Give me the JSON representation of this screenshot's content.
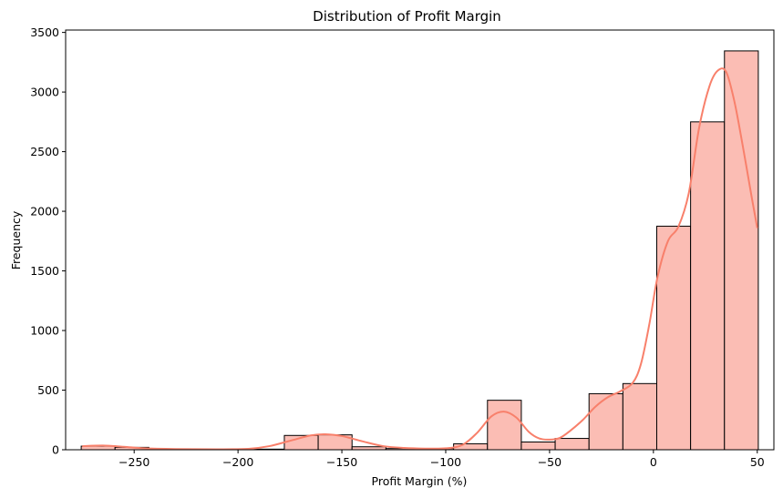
{
  "chart_data": {
    "type": "bar",
    "title": "Distribution of Profit Margin",
    "xlabel": "Profit Margin (%)",
    "ylabel": "Frequency",
    "xlim": [
      -283,
      58
    ],
    "ylim": [
      0,
      3520
    ],
    "xticks": [
      -250,
      -200,
      -150,
      -100,
      -50,
      0,
      50
    ],
    "xtick_labels": [
      "−250",
      "−200",
      "−150",
      "−100",
      "−50",
      "0",
      "50"
    ],
    "yticks": [
      0,
      500,
      1000,
      1500,
      2000,
      2500,
      3000,
      3500
    ],
    "ytick_labels": [
      "0",
      "500",
      "1000",
      "1500",
      "2000",
      "2500",
      "3000",
      "3500"
    ],
    "bins": [
      {
        "x0": -275.5,
        "x1": -259.2,
        "count": 30
      },
      {
        "x0": -259.2,
        "x1": -242.9,
        "count": 20
      },
      {
        "x0": -242.9,
        "x1": -226.6,
        "count": 5
      },
      {
        "x0": -226.6,
        "x1": -210.3,
        "count": 3
      },
      {
        "x0": -210.3,
        "x1": -194.0,
        "count": 3
      },
      {
        "x0": -194.0,
        "x1": -177.7,
        "count": 5
      },
      {
        "x0": -177.7,
        "x1": -161.4,
        "count": 120
      },
      {
        "x0": -161.4,
        "x1": -145.1,
        "count": 125
      },
      {
        "x0": -145.1,
        "x1": -128.8,
        "count": 25
      },
      {
        "x0": -128.8,
        "x1": -112.5,
        "count": 10
      },
      {
        "x0": -112.5,
        "x1": -96.2,
        "count": 10
      },
      {
        "x0": -96.2,
        "x1": -79.9,
        "count": 50
      },
      {
        "x0": -79.9,
        "x1": -63.6,
        "count": 415
      },
      {
        "x0": -63.6,
        "x1": -47.3,
        "count": 65
      },
      {
        "x0": -47.3,
        "x1": -31.0,
        "count": 95
      },
      {
        "x0": -31.0,
        "x1": -14.7,
        "count": 470
      },
      {
        "x0": -14.7,
        "x1": 1.6,
        "count": 555
      },
      {
        "x0": 1.6,
        "x1": 17.9,
        "count": 1875
      },
      {
        "x0": 17.9,
        "x1": 34.2,
        "count": 2750
      },
      {
        "x0": 34.2,
        "x1": 50.5,
        "count": 3345
      }
    ],
    "kde": [
      [
        -275,
        30
      ],
      [
        -265,
        35
      ],
      [
        -255,
        25
      ],
      [
        -245,
        12
      ],
      [
        -230,
        6
      ],
      [
        -210,
        4
      ],
      [
        -195,
        8
      ],
      [
        -185,
        30
      ],
      [
        -175,
        75
      ],
      [
        -165,
        120
      ],
      [
        -158,
        130
      ],
      [
        -150,
        115
      ],
      [
        -140,
        70
      ],
      [
        -130,
        30
      ],
      [
        -120,
        15
      ],
      [
        -110,
        10
      ],
      [
        -100,
        12
      ],
      [
        -92,
        40
      ],
      [
        -85,
        140
      ],
      [
        -78,
        280
      ],
      [
        -72,
        320
      ],
      [
        -66,
        270
      ],
      [
        -60,
        150
      ],
      [
        -55,
        95
      ],
      [
        -50,
        85
      ],
      [
        -45,
        100
      ],
      [
        -40,
        160
      ],
      [
        -34,
        250
      ],
      [
        -28,
        360
      ],
      [
        -22,
        440
      ],
      [
        -16,
        490
      ],
      [
        -10,
        560
      ],
      [
        -6,
        720
      ],
      [
        -2,
        1050
      ],
      [
        2,
        1450
      ],
      [
        7,
        1750
      ],
      [
        12,
        1870
      ],
      [
        17,
        2150
      ],
      [
        22,
        2700
      ],
      [
        27,
        3050
      ],
      [
        31,
        3180
      ],
      [
        35,
        3170
      ],
      [
        39,
        2920
      ],
      [
        43,
        2550
      ],
      [
        47,
        2150
      ],
      [
        50,
        1860
      ]
    ],
    "grid": false,
    "colors": {
      "bar_fill": "#fbbdb4",
      "bar_edge": "#000000",
      "kde_line": "#f8806b"
    }
  }
}
